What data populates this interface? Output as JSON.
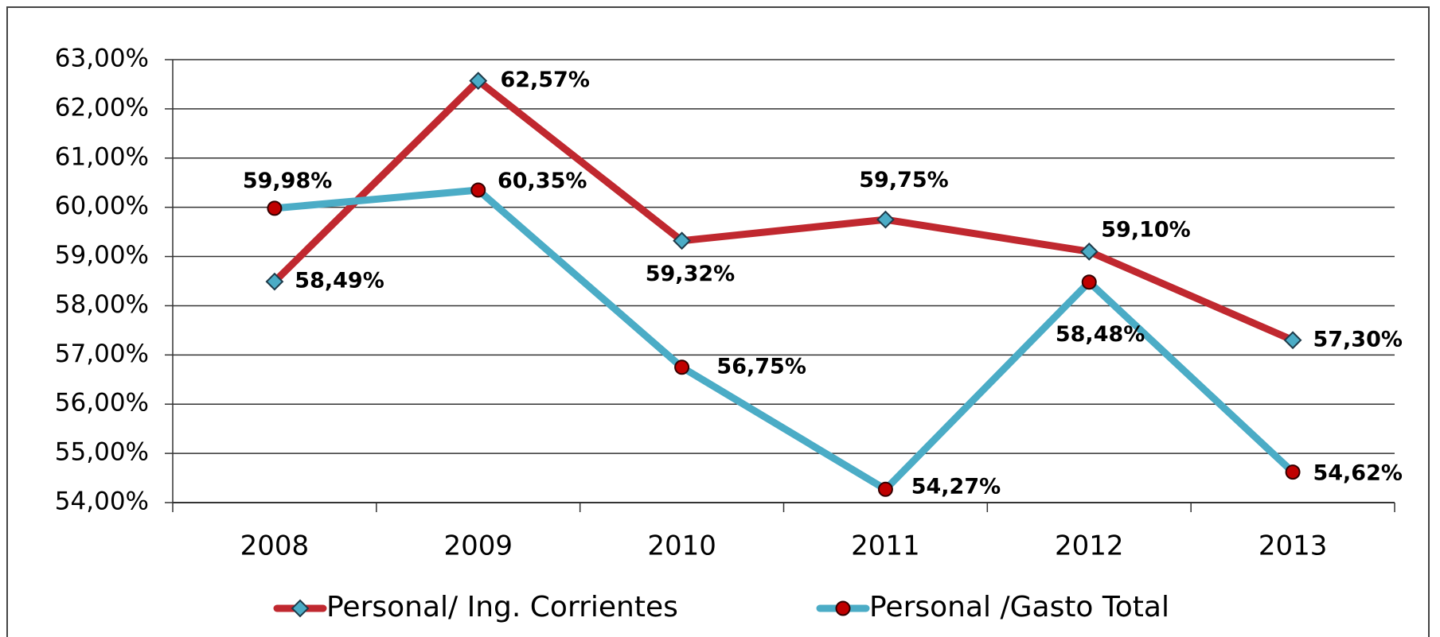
{
  "chart_data": {
    "type": "line",
    "categories": [
      "2008",
      "2009",
      "2010",
      "2011",
      "2012",
      "2013"
    ],
    "series": [
      {
        "name": "Personal/ Ing. Corrientes",
        "color": "#c0282f",
        "marker": "diamond",
        "marker_color": "#4bacc6",
        "values": [
          58.49,
          62.57,
          59.32,
          59.75,
          59.1,
          57.3
        ],
        "value_labels": [
          "58,49%",
          "62,57%",
          "59,32%",
          "59,75%",
          "59,10%",
          "57,30%"
        ]
      },
      {
        "name": "Personal /Gasto Total",
        "color": "#4bacc6",
        "marker": "circle",
        "marker_color": "#c00000",
        "values": [
          59.98,
          60.35,
          56.75,
          54.27,
          58.48,
          54.62
        ],
        "value_labels": [
          "59,98%",
          "60,35%",
          "56,75%",
          "54,27%",
          "58,48%",
          "54,62%"
        ]
      }
    ],
    "ylim": [
      54,
      63
    ],
    "yticks": [
      {
        "value": 54,
        "label": "54,00%"
      },
      {
        "value": 55,
        "label": "55,00%"
      },
      {
        "value": 56,
        "label": "56,00%"
      },
      {
        "value": 57,
        "label": "57,00%"
      },
      {
        "value": 58,
        "label": "58,00%"
      },
      {
        "value": 59,
        "label": "59,00%"
      },
      {
        "value": 60,
        "label": "60,00%"
      },
      {
        "value": 61,
        "label": "61,00%"
      },
      {
        "value": 62,
        "label": "62,00%"
      },
      {
        "value": 63,
        "label": "63,00%"
      }
    ],
    "grid": true,
    "legend": "bottom"
  }
}
